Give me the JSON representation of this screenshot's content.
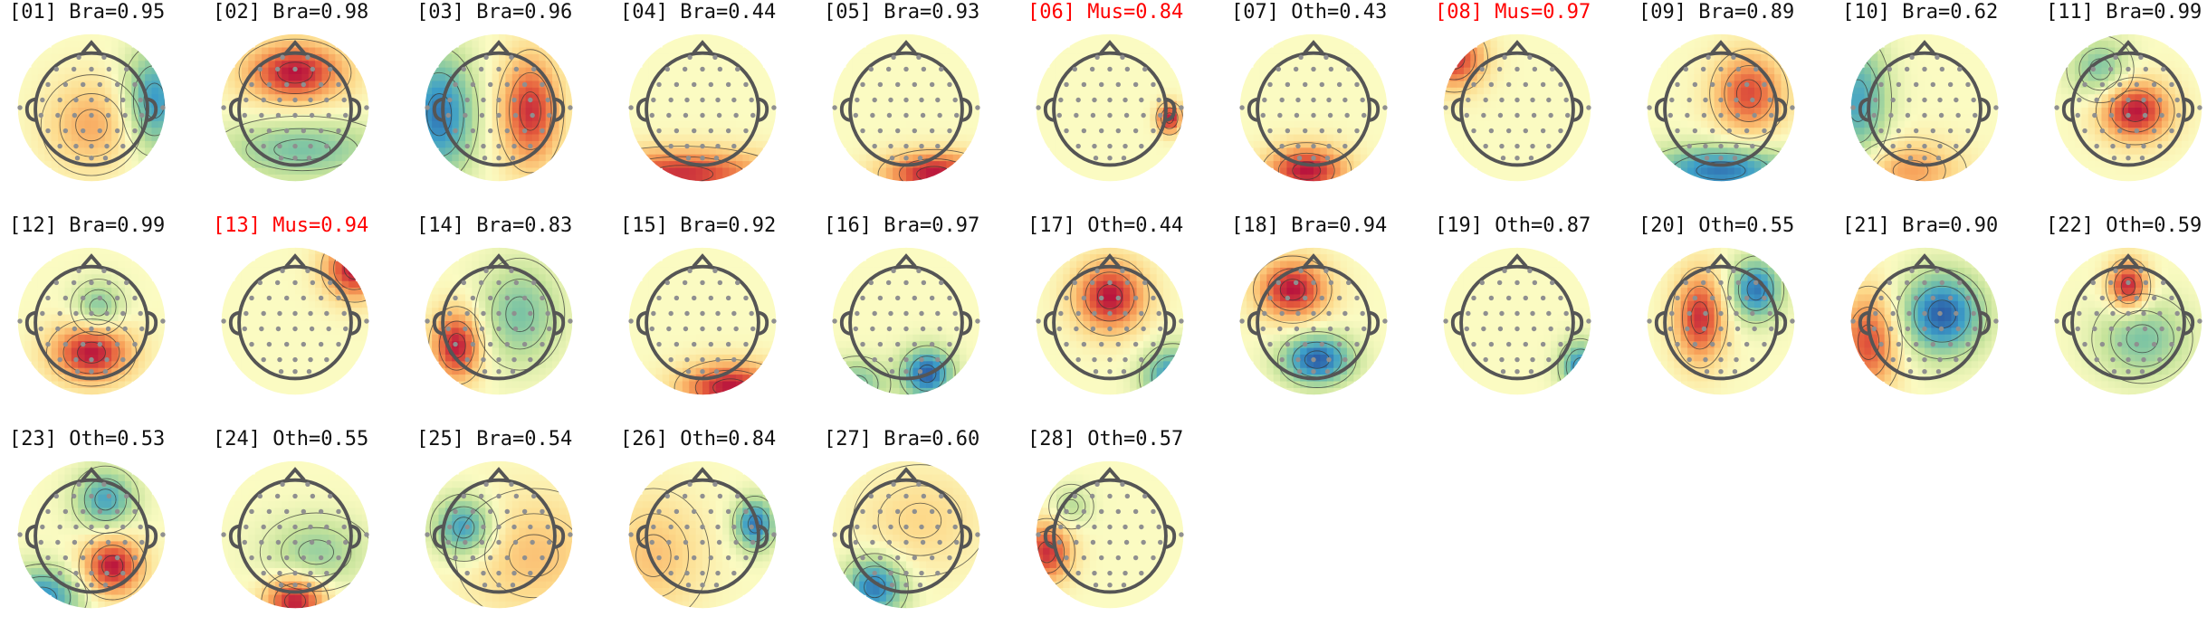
{
  "components": [
    {
      "id": "[01]",
      "label": "Bra",
      "score": "0.95",
      "highlight": false
    },
    {
      "id": "[02]",
      "label": "Bra",
      "score": "0.98",
      "highlight": false
    },
    {
      "id": "[03]",
      "label": "Bra",
      "score": "0.96",
      "highlight": false
    },
    {
      "id": "[04]",
      "label": "Bra",
      "score": "0.44",
      "highlight": false
    },
    {
      "id": "[05]",
      "label": "Bra",
      "score": "0.93",
      "highlight": false
    },
    {
      "id": "[06]",
      "label": "Mus",
      "score": "0.84",
      "highlight": true
    },
    {
      "id": "[07]",
      "label": "Oth",
      "score": "0.43",
      "highlight": false
    },
    {
      "id": "[08]",
      "label": "Mus",
      "score": "0.97",
      "highlight": true
    },
    {
      "id": "[09]",
      "label": "Bra",
      "score": "0.89",
      "highlight": false
    },
    {
      "id": "[10]",
      "label": "Bra",
      "score": "0.62",
      "highlight": false
    },
    {
      "id": "[11]",
      "label": "Bra",
      "score": "0.99",
      "highlight": false
    },
    {
      "id": "[12]",
      "label": "Bra",
      "score": "0.99",
      "highlight": false
    },
    {
      "id": "[13]",
      "label": "Mus",
      "score": "0.94",
      "highlight": true
    },
    {
      "id": "[14]",
      "label": "Bra",
      "score": "0.83",
      "highlight": false
    },
    {
      "id": "[15]",
      "label": "Bra",
      "score": "0.92",
      "highlight": false
    },
    {
      "id": "[16]",
      "label": "Bra",
      "score": "0.97",
      "highlight": false
    },
    {
      "id": "[17]",
      "label": "Oth",
      "score": "0.44",
      "highlight": false
    },
    {
      "id": "[18]",
      "label": "Bra",
      "score": "0.94",
      "highlight": false
    },
    {
      "id": "[19]",
      "label": "Oth",
      "score": "0.87",
      "highlight": false
    },
    {
      "id": "[20]",
      "label": "Oth",
      "score": "0.55",
      "highlight": false
    },
    {
      "id": "[21]",
      "label": "Bra",
      "score": "0.90",
      "highlight": false
    },
    {
      "id": "[22]",
      "label": "Oth",
      "score": "0.59",
      "highlight": false
    },
    {
      "id": "[23]",
      "label": "Oth",
      "score": "0.53",
      "highlight": false
    },
    {
      "id": "[24]",
      "label": "Oth",
      "score": "0.55",
      "highlight": false
    },
    {
      "id": "[25]",
      "label": "Bra",
      "score": "0.54",
      "highlight": false
    },
    {
      "id": "[26]",
      "label": "Oth",
      "score": "0.84",
      "highlight": false
    },
    {
      "id": "[27]",
      "label": "Bra",
      "score": "0.60",
      "highlight": false
    },
    {
      "id": "[28]",
      "label": "Oth",
      "score": "0.57",
      "highlight": false
    }
  ],
  "colors": {
    "text": "#111111",
    "highlight_text": "#ff0000",
    "colormap": [
      "#2c5fa8",
      "#3d9fc9",
      "#7cc4a4",
      "#c4e29a",
      "#fbfbc2",
      "#fdd98a",
      "#f7a25a",
      "#e45b3c",
      "#b8133d"
    ],
    "head_outline": "#555555",
    "sensor_dot": "#8f8f8f",
    "contour": "#333333"
  }
}
